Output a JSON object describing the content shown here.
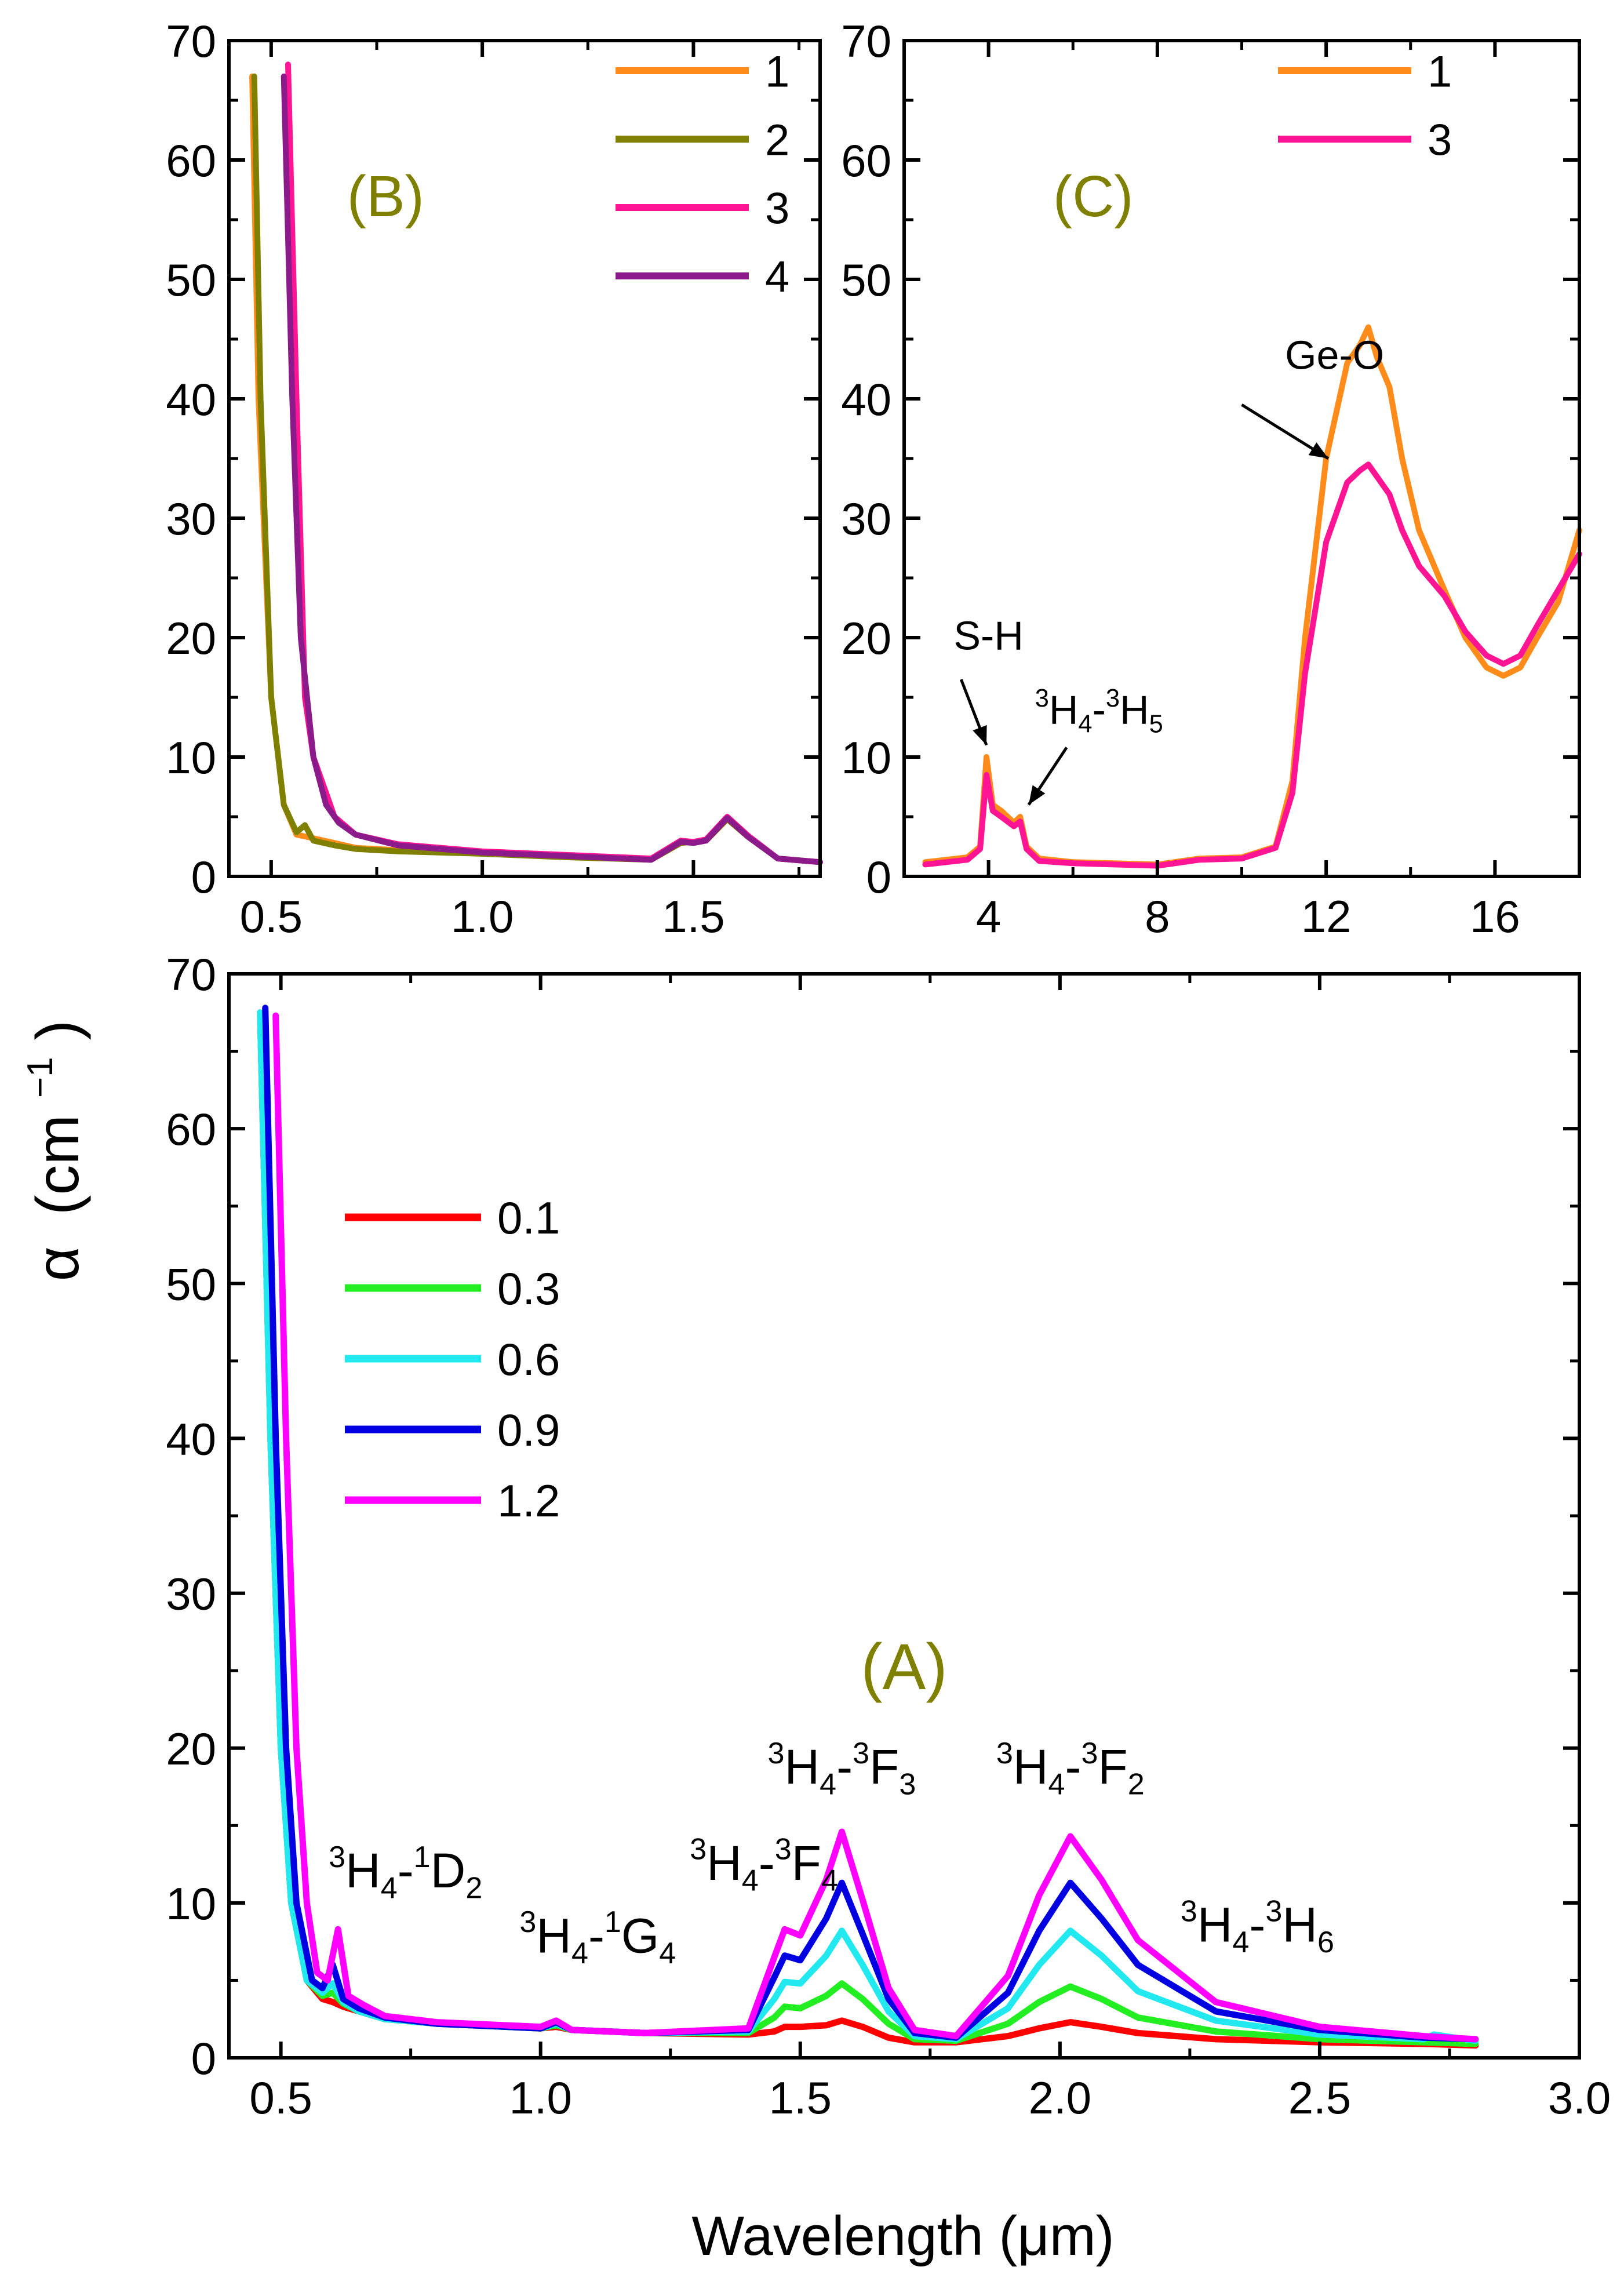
{
  "figure": {
    "ylabel_symbol": "α",
    "ylabel_unit_base": "(cm",
    "ylabel_unit_exp": "−1",
    "ylabel_unit_close": ")",
    "xlabel": "Wavelength (μm)"
  },
  "chart_data": [
    {
      "id": "A",
      "type": "line",
      "panel_label": "(A)",
      "xlabel": "Wavelength (μm)",
      "ylabel": "α (cm⁻¹)",
      "xlim": [
        0.4,
        3.0
      ],
      "ylim": [
        0,
        70
      ],
      "xticks": [
        0.5,
        1.0,
        1.5,
        2.0,
        2.5,
        3.0
      ],
      "xtick_labels": [
        "0.5",
        "1.0",
        "1.5",
        "2.0",
        "2.5",
        "3.0"
      ],
      "yticks": [
        0,
        10,
        20,
        30,
        40,
        50,
        60,
        70
      ],
      "ytick_labels": [
        "0",
        "10",
        "20",
        "30",
        "40",
        "50",
        "60",
        "70"
      ],
      "legend_position": "upper-left",
      "series": [
        {
          "name": "0.1",
          "color": "#ff0000",
          "x": [
            0.46,
            0.48,
            0.5,
            0.52,
            0.55,
            0.58,
            0.6,
            0.62,
            0.65,
            0.7,
            0.8,
            1.0,
            1.03,
            1.06,
            1.2,
            1.4,
            1.45,
            1.47,
            1.5,
            1.55,
            1.58,
            1.62,
            1.67,
            1.72,
            1.8,
            1.9,
            1.96,
            2.02,
            2.08,
            2.15,
            2.3,
            2.5,
            2.7,
            2.8
          ],
          "y": [
            67.5,
            40,
            20,
            10,
            5,
            3.8,
            3.6,
            3.3,
            3,
            2.5,
            2.2,
            1.9,
            2.0,
            1.8,
            1.6,
            1.5,
            1.7,
            2.0,
            2.0,
            2.1,
            2.4,
            2.0,
            1.3,
            1.0,
            1.0,
            1.4,
            1.9,
            2.3,
            2.0,
            1.6,
            1.2,
            1.0,
            0.9,
            0.8
          ]
        },
        {
          "name": "0.3",
          "color": "#22ee22",
          "x": [
            0.46,
            0.48,
            0.5,
            0.52,
            0.55,
            0.58,
            0.6,
            0.62,
            0.65,
            0.7,
            0.8,
            1.0,
            1.03,
            1.06,
            1.2,
            1.4,
            1.45,
            1.47,
            1.5,
            1.55,
            1.58,
            1.62,
            1.67,
            1.72,
            1.8,
            1.9,
            1.96,
            2.02,
            2.08,
            2.15,
            2.3,
            2.5,
            2.7,
            2.8
          ],
          "y": [
            67.5,
            40,
            20,
            10,
            5,
            4.0,
            4.2,
            3.5,
            3,
            2.5,
            2.2,
            1.9,
            2.1,
            1.8,
            1.6,
            1.6,
            2.6,
            3.3,
            3.2,
            4.0,
            4.8,
            3.8,
            2.2,
            1.2,
            1.1,
            2.2,
            3.6,
            4.6,
            3.8,
            2.6,
            1.7,
            1.2,
            1.0,
            0.9
          ]
        },
        {
          "name": "0.6",
          "color": "#22e8f0",
          "x": [
            0.46,
            0.48,
            0.5,
            0.52,
            0.55,
            0.58,
            0.6,
            0.62,
            0.65,
            0.7,
            0.8,
            1.0,
            1.03,
            1.06,
            1.2,
            1.4,
            1.45,
            1.47,
            1.5,
            1.55,
            1.58,
            1.62,
            1.67,
            1.72,
            1.8,
            1.9,
            1.96,
            2.02,
            2.08,
            2.15,
            2.3,
            2.5,
            2.7,
            2.72,
            2.8
          ],
          "y": [
            67.5,
            40,
            20,
            10,
            5,
            4.2,
            4.8,
            3.6,
            3,
            2.5,
            2.2,
            1.9,
            2.2,
            1.8,
            1.6,
            1.7,
            3.8,
            4.9,
            4.8,
            6.6,
            8.2,
            6.0,
            3.0,
            1.4,
            1.2,
            3.2,
            6.0,
            8.2,
            6.6,
            4.3,
            2.4,
            1.5,
            1.2,
            1.5,
            1.1
          ]
        },
        {
          "name": "0.9",
          "color": "#0000e0",
          "x": [
            0.47,
            0.49,
            0.51,
            0.53,
            0.56,
            0.58,
            0.6,
            0.62,
            0.65,
            0.7,
            0.8,
            1.0,
            1.03,
            1.06,
            1.2,
            1.4,
            1.45,
            1.47,
            1.5,
            1.55,
            1.58,
            1.62,
            1.67,
            1.72,
            1.8,
            1.9,
            1.96,
            2.02,
            2.08,
            2.15,
            2.3,
            2.5,
            2.7,
            2.8
          ],
          "y": [
            67.8,
            40,
            20,
            10,
            5,
            4.5,
            6.0,
            3.8,
            3.2,
            2.6,
            2.2,
            1.9,
            2.3,
            1.8,
            1.6,
            1.8,
            5.2,
            6.6,
            6.3,
            9.0,
            11.3,
            8.0,
            3.8,
            1.6,
            1.3,
            4.2,
            8.2,
            11.3,
            9.0,
            6.0,
            3.0,
            1.8,
            1.3,
            1.2
          ]
        },
        {
          "name": "1.2",
          "color": "#ff00ff",
          "x": [
            0.49,
            0.51,
            0.53,
            0.55,
            0.57,
            0.59,
            0.61,
            0.63,
            0.66,
            0.7,
            0.8,
            1.0,
            1.03,
            1.06,
            1.2,
            1.4,
            1.45,
            1.47,
            1.5,
            1.55,
            1.58,
            1.62,
            1.67,
            1.72,
            1.8,
            1.9,
            1.96,
            2.02,
            2.08,
            2.15,
            2.3,
            2.5,
            2.7,
            2.8
          ],
          "y": [
            67.3,
            40,
            20,
            10,
            5.5,
            5.0,
            8.3,
            4.0,
            3.4,
            2.7,
            2.3,
            2.0,
            2.4,
            1.8,
            1.6,
            1.9,
            6.5,
            8.3,
            7.9,
            11.5,
            14.6,
            10.2,
            4.5,
            1.8,
            1.4,
            5.3,
            10.5,
            14.3,
            11.5,
            7.6,
            3.6,
            2.0,
            1.4,
            1.2
          ]
        }
      ],
      "annotations": [
        {
          "base": "H",
          "parts": [
            {
              "t": "3",
              "s": "sup"
            },
            {
              "t": "H",
              "s": ""
            },
            {
              "t": "4",
              "s": "sub"
            },
            {
              "t": "-",
              "s": ""
            },
            {
              "t": "1",
              "s": "sup"
            },
            {
              "t": "D",
              "s": ""
            },
            {
              "t": "2",
              "s": "sub"
            }
          ],
          "x": 0.74,
          "y": 11.0,
          "anchor": "middle"
        },
        {
          "base": "H",
          "parts": [
            {
              "t": "3",
              "s": "sup"
            },
            {
              "t": "H",
              "s": ""
            },
            {
              "t": "4",
              "s": "sub"
            },
            {
              "t": "-",
              "s": ""
            },
            {
              "t": "1",
              "s": "sup"
            },
            {
              "t": "G",
              "s": ""
            },
            {
              "t": "4",
              "s": "sub"
            }
          ],
          "x": 1.11,
          "y": 6.8,
          "anchor": "middle"
        },
        {
          "base": "H",
          "parts": [
            {
              "t": "3",
              "s": "sup"
            },
            {
              "t": "H",
              "s": ""
            },
            {
              "t": "4",
              "s": "sub"
            },
            {
              "t": "-",
              "s": ""
            },
            {
              "t": "3",
              "s": "sup"
            },
            {
              "t": "F",
              "s": ""
            },
            {
              "t": "4",
              "s": "sub"
            }
          ],
          "x": 1.43,
          "y": 11.5,
          "anchor": "middle"
        },
        {
          "base": "H",
          "parts": [
            {
              "t": "3",
              "s": "sup"
            },
            {
              "t": "H",
              "s": ""
            },
            {
              "t": "4",
              "s": "sub"
            },
            {
              "t": "-",
              "s": ""
            },
            {
              "t": "3",
              "s": "sup"
            },
            {
              "t": "F",
              "s": ""
            },
            {
              "t": "3",
              "s": "sub"
            }
          ],
          "x": 1.58,
          "y": 17.7,
          "anchor": "middle"
        },
        {
          "base": "H",
          "parts": [
            {
              "t": "3",
              "s": "sup"
            },
            {
              "t": "H",
              "s": ""
            },
            {
              "t": "4",
              "s": "sub"
            },
            {
              "t": "-",
              "s": ""
            },
            {
              "t": "3",
              "s": "sup"
            },
            {
              "t": "F",
              "s": ""
            },
            {
              "t": "2",
              "s": "sub"
            }
          ],
          "x": 2.02,
          "y": 17.7,
          "anchor": "middle"
        },
        {
          "base": "H",
          "parts": [
            {
              "t": "3",
              "s": "sup"
            },
            {
              "t": "H",
              "s": ""
            },
            {
              "t": "4",
              "s": "sub"
            },
            {
              "t": "-",
              "s": ""
            },
            {
              "t": "3",
              "s": "sup"
            },
            {
              "t": "H",
              "s": ""
            },
            {
              "t": "6",
              "s": "sub"
            }
          ],
          "x": 2.38,
          "y": 7.5,
          "anchor": "middle"
        }
      ]
    },
    {
      "id": "B",
      "type": "line",
      "panel_label": "(B)",
      "xlim": [
        0.4,
        1.8
      ],
      "ylim": [
        0,
        70
      ],
      "xticks": [
        0.5,
        1.0,
        1.5
      ],
      "xtick_labels": [
        "0.5",
        "1.0",
        "1.5"
      ],
      "yticks": [
        0,
        10,
        20,
        30,
        40,
        50,
        60,
        70
      ],
      "ytick_labels": [
        "0",
        "10",
        "20",
        "30",
        "40",
        "50",
        "60",
        "70"
      ],
      "legend_position": "upper-right",
      "series": [
        {
          "name": "1",
          "color": "#ff8c1a",
          "x": [
            0.455,
            0.47,
            0.5,
            0.53,
            0.56,
            0.6,
            0.65,
            0.7,
            0.8,
            1.0,
            1.2,
            1.4,
            1.47,
            1.5,
            1.53,
            1.58,
            1.63,
            1.7,
            1.8
          ],
          "y": [
            67,
            40,
            15,
            6,
            3.5,
            3.2,
            2.8,
            2.4,
            2.2,
            2.0,
            1.7,
            1.4,
            2.8,
            2.9,
            3.0,
            4.8,
            3.3,
            1.5,
            1.2
          ]
        },
        {
          "name": "2",
          "color": "#808000",
          "x": [
            0.46,
            0.475,
            0.5,
            0.53,
            0.56,
            0.58,
            0.6,
            0.65,
            0.7,
            0.8,
            1.0,
            1.2,
            1.4,
            1.47,
            1.5,
            1.53,
            1.58,
            1.63,
            1.7,
            1.8
          ],
          "y": [
            67,
            40,
            15,
            6,
            3.7,
            4.3,
            3.0,
            2.6,
            2.3,
            2.1,
            1.9,
            1.6,
            1.4,
            2.8,
            2.9,
            3.0,
            4.8,
            3.3,
            1.5,
            1.2
          ]
        },
        {
          "name": "3",
          "color": "#ff1493",
          "x": [
            0.54,
            0.56,
            0.58,
            0.6,
            0.63,
            0.65,
            0.7,
            0.8,
            1.0,
            1.2,
            1.4,
            1.47,
            1.5,
            1.53,
            1.58,
            1.63,
            1.7,
            1.8
          ],
          "y": [
            68,
            40,
            15,
            10,
            7,
            5,
            3.5,
            2.7,
            2.1,
            1.8,
            1.5,
            3.0,
            2.9,
            3.1,
            5.0,
            3.4,
            1.5,
            1.2
          ]
        },
        {
          "name": "4",
          "color": "#8b1a8b",
          "x": [
            0.53,
            0.55,
            0.57,
            0.6,
            0.63,
            0.66,
            0.7,
            0.8,
            1.0,
            1.2,
            1.4,
            1.47,
            1.5,
            1.53,
            1.58,
            1.63,
            1.7,
            1.8
          ],
          "y": [
            67,
            40,
            20,
            10,
            6,
            4.5,
            3.5,
            2.6,
            2.0,
            1.7,
            1.4,
            2.9,
            2.8,
            3.0,
            4.9,
            3.3,
            1.5,
            1.2
          ]
        }
      ]
    },
    {
      "id": "C",
      "type": "line",
      "panel_label": "(C)",
      "xlim": [
        2,
        18
      ],
      "ylim": [
        0,
        70
      ],
      "xticks": [
        4,
        8,
        12,
        16
      ],
      "xtick_labels": [
        "4",
        "8",
        "12",
        "16"
      ],
      "yticks": [
        0,
        10,
        20,
        30,
        40,
        50,
        60,
        70
      ],
      "ytick_labels": [
        "0",
        "10",
        "20",
        "30",
        "40",
        "50",
        "60",
        "70"
      ],
      "legend_position": "upper-left",
      "series": [
        {
          "name": "1",
          "color": "#ff8c1a",
          "x": [
            2.5,
            3.0,
            3.5,
            3.8,
            3.95,
            4.1,
            4.3,
            4.6,
            4.75,
            4.9,
            5.2,
            6.0,
            8.0,
            9.0,
            10.0,
            10.8,
            11.2,
            11.5,
            12.0,
            12.5,
            12.8,
            13.0,
            13.2,
            13.5,
            13.8,
            14.2,
            14.8,
            15.3,
            15.8,
            16.2,
            16.6,
            17.0,
            17.5,
            18.0
          ],
          "y": [
            1.2,
            1.4,
            1.6,
            2.5,
            10.0,
            6.0,
            5.5,
            4.5,
            5.0,
            2.5,
            1.5,
            1.2,
            1.0,
            1.5,
            1.6,
            2.5,
            8.0,
            20.0,
            35.0,
            43.0,
            44.5,
            46.0,
            43.5,
            41.0,
            35.0,
            29.0,
            24.0,
            20.0,
            17.5,
            16.8,
            17.5,
            20.0,
            23.0,
            29.0
          ]
        },
        {
          "name": "3",
          "color": "#ff1493",
          "x": [
            2.5,
            3.0,
            3.5,
            3.8,
            3.95,
            4.1,
            4.3,
            4.6,
            4.75,
            4.9,
            5.2,
            6.0,
            8.0,
            9.0,
            10.0,
            10.8,
            11.2,
            11.5,
            12.0,
            12.5,
            12.8,
            13.0,
            13.2,
            13.5,
            13.8,
            14.2,
            14.8,
            15.3,
            15.8,
            16.2,
            16.6,
            17.0,
            17.5,
            18.0
          ],
          "y": [
            1.0,
            1.2,
            1.4,
            2.3,
            8.5,
            5.5,
            5.0,
            4.2,
            4.6,
            2.3,
            1.3,
            1.1,
            0.9,
            1.4,
            1.5,
            2.4,
            7.0,
            17.0,
            28.0,
            33.0,
            34.0,
            34.5,
            33.5,
            32.0,
            29.0,
            26.0,
            23.5,
            20.5,
            18.5,
            17.8,
            18.5,
            21.0,
            24.0,
            27.0
          ]
        }
      ],
      "annotations": [
        {
          "text": "S-H",
          "x": 4.0,
          "y": 19.0
        },
        {
          "text": "Ge-O",
          "x": 12.2,
          "y": 42.5
        }
      ],
      "annotation_labels": [
        {
          "parts": [
            {
              "t": "3",
              "s": "sup"
            },
            {
              "t": "H",
              "s": ""
            },
            {
              "t": "4",
              "s": "sub"
            },
            {
              "t": "-",
              "s": ""
            },
            {
              "t": "3",
              "s": "sup"
            },
            {
              "t": "H",
              "s": ""
            },
            {
              "t": "5",
              "s": "sub"
            }
          ],
          "x": 5.1,
          "y": 12.8
        }
      ]
    }
  ]
}
